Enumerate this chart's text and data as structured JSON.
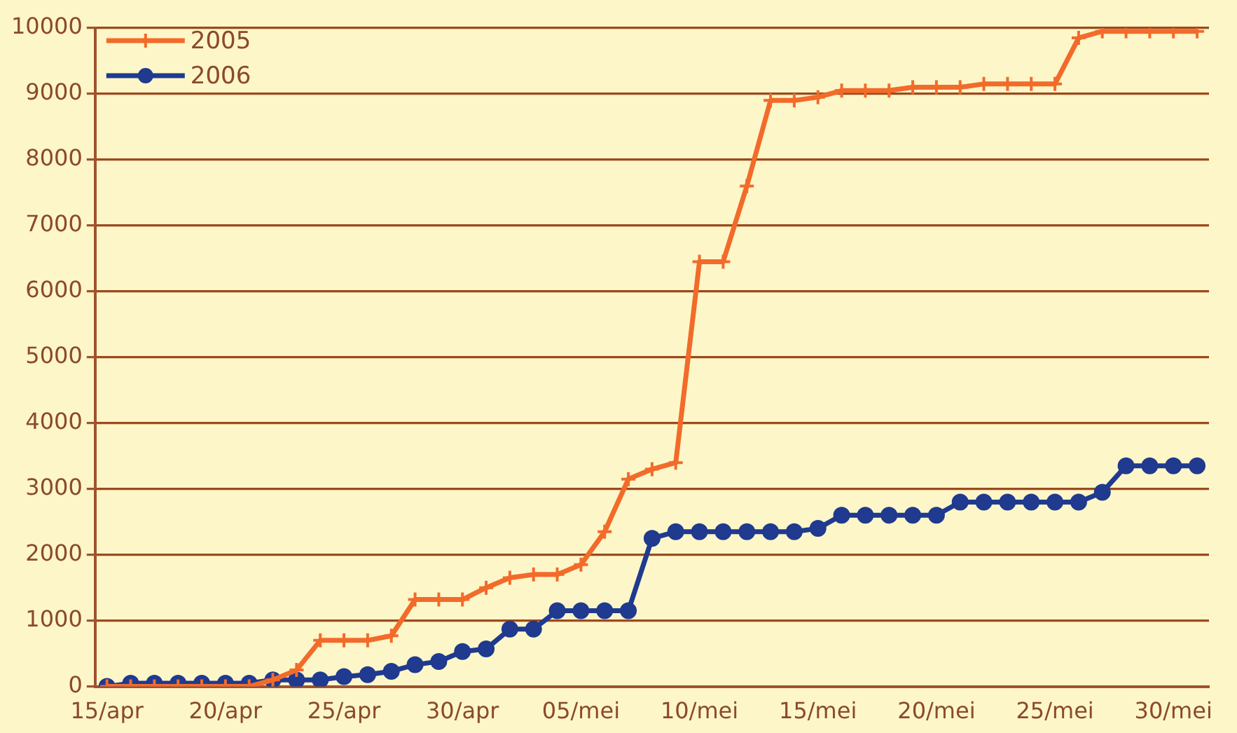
{
  "chart_data": {
    "type": "line",
    "categories": [
      "15/apr",
      null,
      null,
      null,
      null,
      "20/apr",
      null,
      null,
      null,
      null,
      "25/apr",
      null,
      null,
      null,
      null,
      "30/apr",
      null,
      null,
      null,
      null,
      "05/mei",
      null,
      null,
      null,
      null,
      "10/mei",
      null,
      null,
      null,
      null,
      "15/mei",
      null,
      null,
      null,
      null,
      "20/mei",
      null,
      null,
      null,
      null,
      "25/mei",
      null,
      null,
      null,
      null,
      "30/mei",
      null
    ],
    "series": [
      {
        "name": "2005",
        "color": "#f26b2a",
        "marker": "cross",
        "values": [
          0,
          0,
          0,
          0,
          0,
          0,
          0,
          100,
          250,
          700,
          700,
          700,
          770,
          1320,
          1320,
          1320,
          1500,
          1650,
          1700,
          1700,
          1850,
          2350,
          3150,
          3300,
          3400,
          6450,
          6450,
          7600,
          8900,
          8900,
          8950,
          9050,
          9050,
          9050,
          9100,
          9100,
          9100,
          9150,
          9150,
          9150,
          9150,
          9850,
          9950,
          9950,
          9950,
          9950,
          9950
        ]
      },
      {
        "name": "2006",
        "color": "#1f3a8f",
        "marker": "circle",
        "values": [
          0,
          50,
          50,
          50,
          50,
          50,
          50,
          100,
          100,
          100,
          150,
          180,
          230,
          330,
          380,
          530,
          570,
          870,
          870,
          1150,
          1150,
          1150,
          1150,
          2250,
          2350,
          2350,
          2350,
          2350,
          2350,
          2350,
          2400,
          2600,
          2600,
          2600,
          2600,
          2600,
          2800,
          2800,
          2800,
          2800,
          2800,
          2800,
          2950,
          3350,
          3350,
          3350,
          3350
        ]
      }
    ],
    "ylim": [
      0,
      10000
    ],
    "yticks": [
      0,
      1000,
      2000,
      3000,
      4000,
      5000,
      6000,
      7000,
      8000,
      9000,
      10000
    ],
    "grid": "y",
    "legend": "top left"
  }
}
